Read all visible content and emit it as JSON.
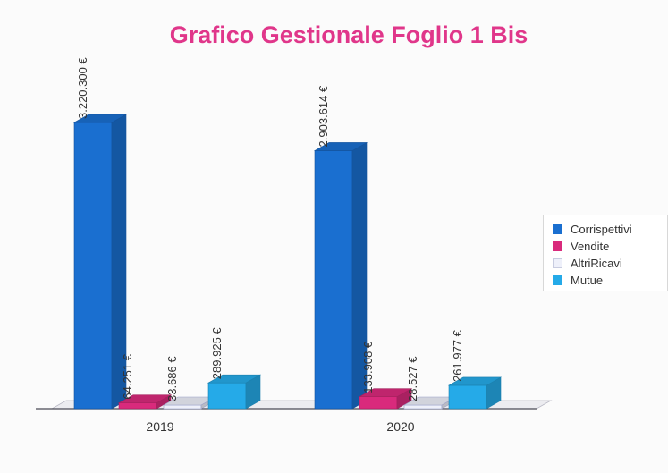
{
  "chart_data": {
    "type": "bar",
    "title": "Grafico Gestionale Foglio 1 Bis",
    "categories": [
      "2019",
      "2020"
    ],
    "series": [
      {
        "name": "Corrispettivi",
        "values": [
          3220300,
          2903614
        ],
        "labels": [
          "3.220.300 €",
          "2.903.614 €"
        ],
        "color": "#1a6fd0"
      },
      {
        "name": "Vendite",
        "values": [
          64251,
          133908
        ],
        "labels": [
          "64.251 €",
          "133.908 €"
        ],
        "color": "#d92a7c"
      },
      {
        "name": "AltriRicavi",
        "values": [
          33686,
          28527
        ],
        "labels": [
          "33.686 €",
          "28.527 €"
        ],
        "color": "#eef0fa"
      },
      {
        "name": "Mutue",
        "values": [
          289925,
          261977
        ],
        "labels": [
          "289.925 €",
          "261.977 €"
        ],
        "color": "#25aae8"
      }
    ],
    "legend_position": "right",
    "grid": false
  }
}
